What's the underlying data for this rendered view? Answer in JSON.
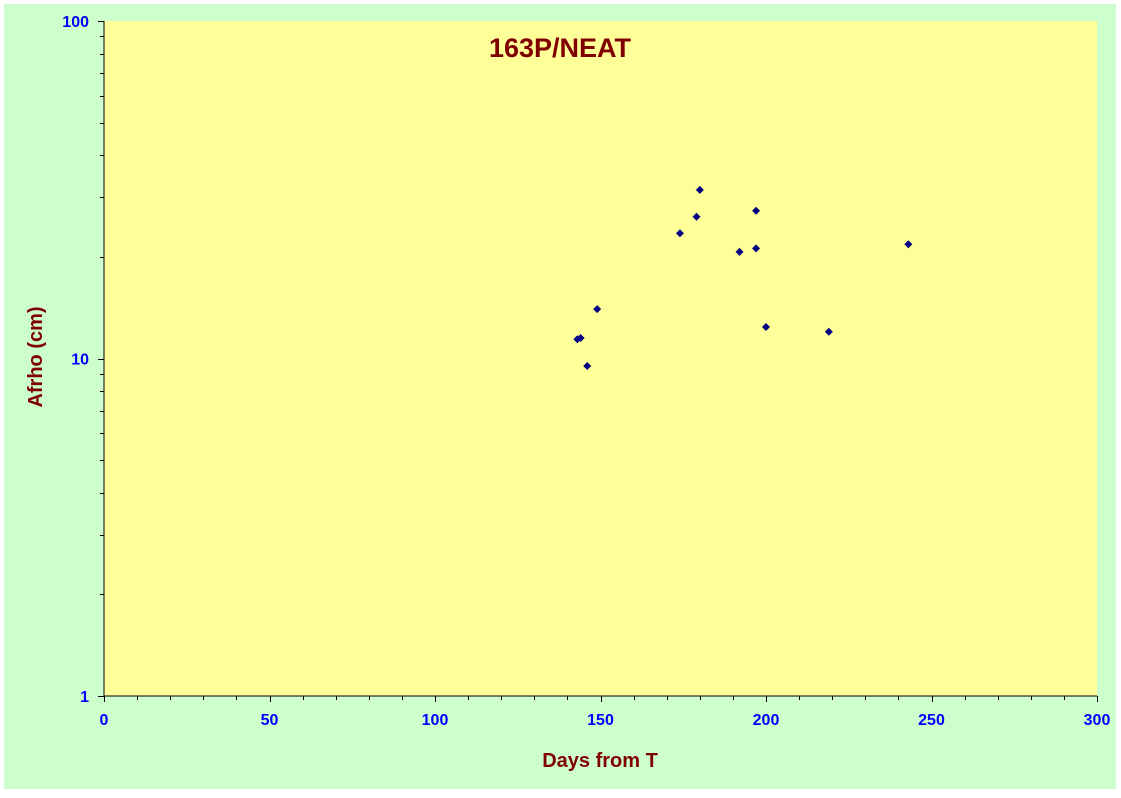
{
  "colors": {
    "outer_background": "#ccffcc",
    "plot_background": "#ffff99",
    "title": "#800000",
    "axis_title": "#800000",
    "tick_label": "#0000ff",
    "marker": "#000080",
    "axis_line": "#000000"
  },
  "chart_data": {
    "type": "scatter",
    "title": "163P/NEAT",
    "xlabel": "Days from T",
    "ylabel": "Afrho (cm)",
    "xlim": [
      0,
      300
    ],
    "ylim": [
      1,
      100
    ],
    "y_scale": "log",
    "x_ticks": [
      "0",
      "50",
      "100",
      "150",
      "200",
      "250",
      "300"
    ],
    "y_ticks": [
      "1",
      "10",
      "100"
    ],
    "grid": false,
    "legend": "none",
    "marker": "diamond",
    "points": [
      {
        "x": 143,
        "y": 11.4
      },
      {
        "x": 144,
        "y": 11.5
      },
      {
        "x": 146,
        "y": 9.5
      },
      {
        "x": 149,
        "y": 14.0
      },
      {
        "x": 174,
        "y": 23.5
      },
      {
        "x": 179,
        "y": 26.3
      },
      {
        "x": 180,
        "y": 31.6
      },
      {
        "x": 192,
        "y": 20.7
      },
      {
        "x": 197,
        "y": 27.4
      },
      {
        "x": 197,
        "y": 21.2
      },
      {
        "x": 200,
        "y": 12.4
      },
      {
        "x": 219,
        "y": 12.0
      },
      {
        "x": 243,
        "y": 21.8
      }
    ]
  }
}
